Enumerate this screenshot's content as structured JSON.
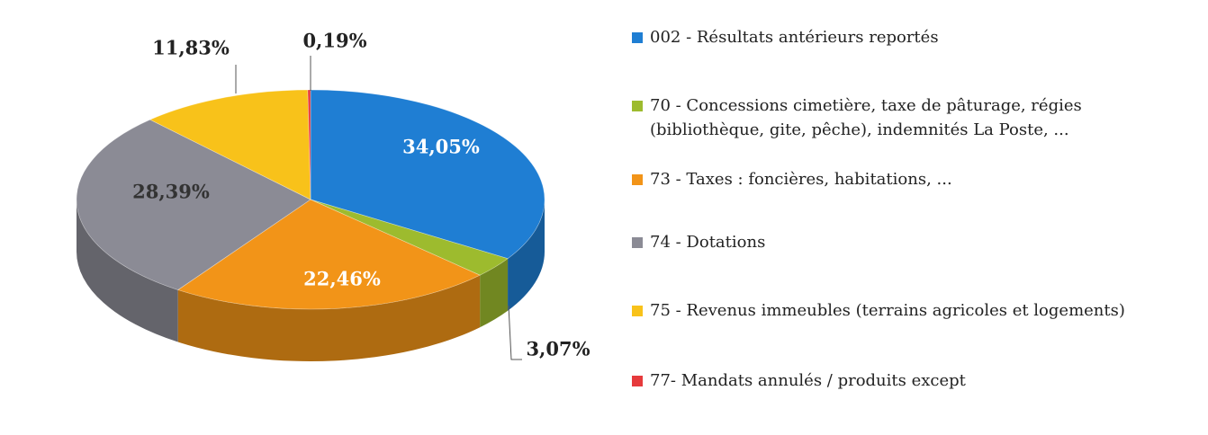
{
  "chart_data": {
    "type": "pie",
    "categories": [
      "002 - Résultats antérieurs reportés",
      "70 - Concessions cimetière, taxe de pâturage, régies (bibliothèque, gite, pêche), indemnités La Poste, ...",
      "73 - Taxes : foncières, habitations, ...",
      "74 - Dotations",
      "75 - Revenus immeubles (terrains agricoles et logements)",
      "77- Mandats annulés / produits except"
    ],
    "values": [
      34.05,
      3.07,
      22.46,
      28.39,
      11.83,
      0.19
    ],
    "value_labels": [
      "34,05%",
      "3,07%",
      "22,46%",
      "28,39%",
      "11,83%",
      "0,19%"
    ],
    "colors": [
      "#1f7ed3",
      "#9dbb2e",
      "#f29418",
      "#8b8b95",
      "#f8c21a",
      "#e63a3c"
    ],
    "legend": "right"
  }
}
